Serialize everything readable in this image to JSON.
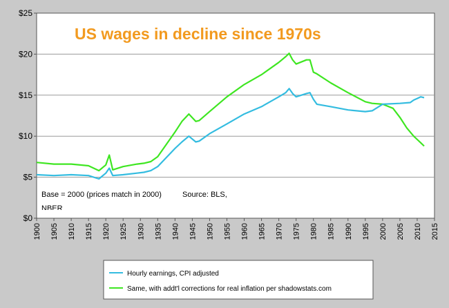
{
  "chart_data": {
    "type": "line",
    "title": "US wages in decline since 1970s",
    "note_left": "Base = 2000 (prices match in 2000)",
    "note_source": "Source: BLS,",
    "note_source2": "NBER",
    "ylim": [
      0,
      25
    ],
    "xlim": [
      1900,
      2015
    ],
    "y_ticks": [
      "$0",
      "$5",
      "$10",
      "$15",
      "$20",
      "$25"
    ],
    "y_tick_values": [
      0,
      5,
      10,
      15,
      20,
      25
    ],
    "x_ticks": [
      "1900",
      "1905",
      "1910",
      "1915",
      "1920",
      "1925",
      "1930",
      "1935",
      "1940",
      "1945",
      "1950",
      "1955",
      "1960",
      "1965",
      "1970",
      "1975",
      "1980",
      "1985",
      "1990",
      "1995",
      "2000",
      "2005",
      "2010",
      "2015"
    ],
    "grid": "horizontal",
    "legend_position": "bottom",
    "series": [
      {
        "name": "Hourly earnings, CPI adjusted",
        "color": "#33bce0",
        "x": [
          1900,
          1905,
          1910,
          1915,
          1918,
          1920,
          1921,
          1922,
          1925,
          1929,
          1931,
          1933,
          1935,
          1940,
          1942,
          1944,
          1946,
          1947,
          1950,
          1955,
          1960,
          1965,
          1970,
          1972,
          1973,
          1974,
          1975,
          1978,
          1979,
          1980,
          1981,
          1985,
          1990,
          1995,
          1997,
          2000,
          2005,
          2008,
          2009,
          2010,
          2011,
          2012
        ],
        "values": [
          5.3,
          5.2,
          5.3,
          5.2,
          4.8,
          5.5,
          6.1,
          5.2,
          5.3,
          5.5,
          5.6,
          5.8,
          6.3,
          8.5,
          9.3,
          10.0,
          9.3,
          9.4,
          10.3,
          11.5,
          12.7,
          13.6,
          14.8,
          15.3,
          15.8,
          15.2,
          14.8,
          15.2,
          15.3,
          14.5,
          13.9,
          13.6,
          13.2,
          13.0,
          13.1,
          13.9,
          14.0,
          14.1,
          14.4,
          14.6,
          14.8,
          14.7
        ]
      },
      {
        "name": "Same, with addt'l corrections for real inflation per shadowstats.com",
        "color": "#3ee621",
        "x": [
          1900,
          1905,
          1910,
          1915,
          1918,
          1920,
          1921,
          1922,
          1925,
          1929,
          1931,
          1933,
          1935,
          1940,
          1942,
          1944,
          1946,
          1947,
          1950,
          1955,
          1960,
          1965,
          1970,
          1972,
          1973,
          1974,
          1975,
          1978,
          1979,
          1980,
          1981,
          1985,
          1990,
          1995,
          1997,
          2000,
          2003,
          2005,
          2007,
          2009,
          2010,
          2011,
          2012
        ],
        "values": [
          6.8,
          6.6,
          6.6,
          6.4,
          5.8,
          6.5,
          7.7,
          5.9,
          6.3,
          6.6,
          6.7,
          6.9,
          7.5,
          10.5,
          11.8,
          12.7,
          11.8,
          11.9,
          13.0,
          14.8,
          16.3,
          17.5,
          19.0,
          19.7,
          20.1,
          19.3,
          18.8,
          19.3,
          19.3,
          17.8,
          17.6,
          16.5,
          15.3,
          14.2,
          14.0,
          13.9,
          13.4,
          12.3,
          11.0,
          10.0,
          9.6,
          9.2,
          8.8
        ]
      }
    ]
  }
}
